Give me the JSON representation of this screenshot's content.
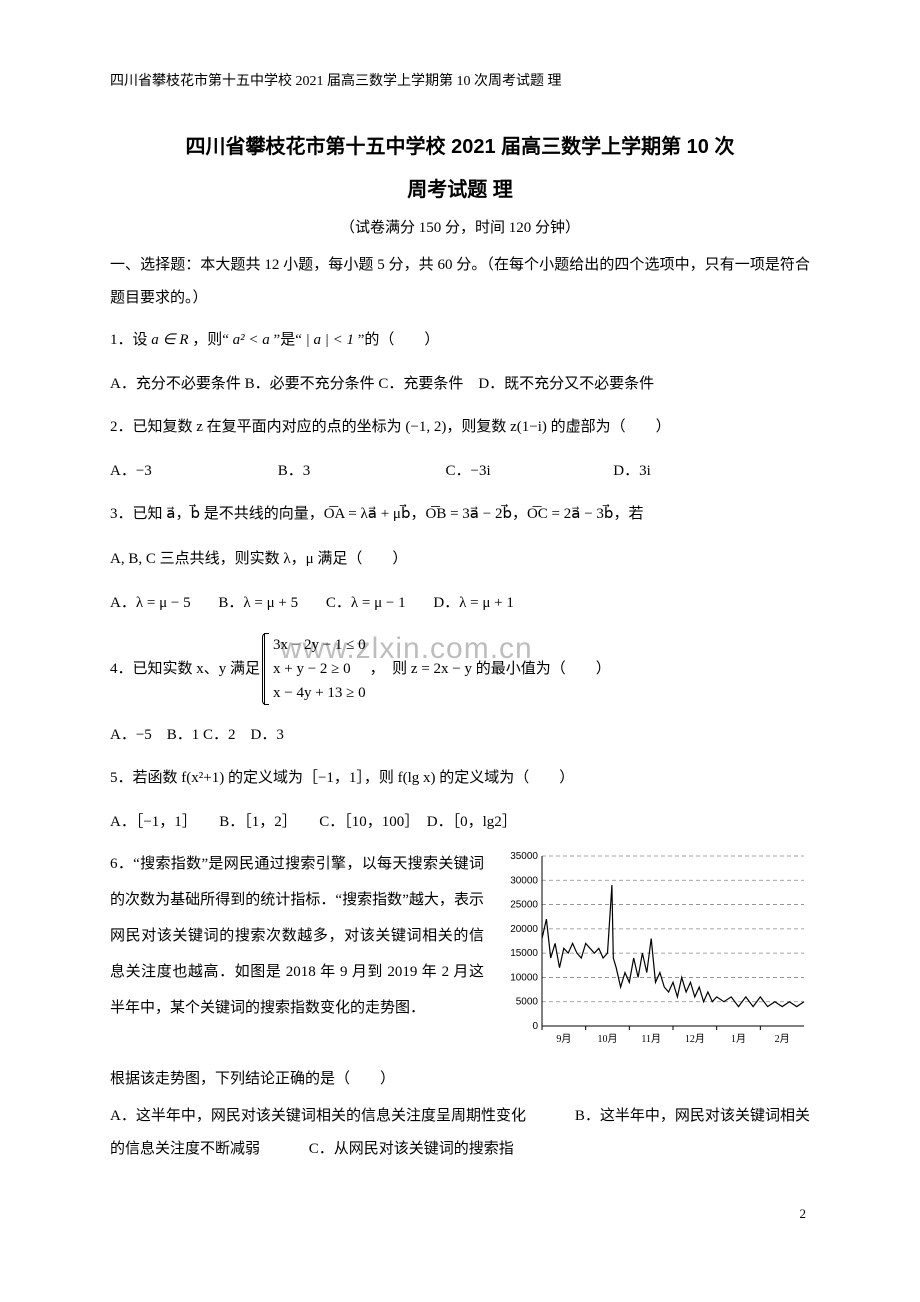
{
  "header": "四川省攀枝花市第十五中学校 2021 届高三数学上学期第 10 次周考试题 理",
  "title_line1": "四川省攀枝花市第十五中学校 2021 届高三数学上学期第 10 次",
  "title_line2": "周考试题 理",
  "subinfo": "（试卷满分 150 分，时间 120 分钟）",
  "section1": "一、选择题：本大题共 12 小题，每小题 5 分，共 60 分。（在每个小题给出的四个选项中，只有一项是符合题目要求的。）",
  "q1": {
    "stem_prefix": "1．设",
    "stem_mid": "，则“",
    "stem_mid2": "”是“",
    "stem_end": "”的（　　）",
    "a_in_R": "a ∈ R",
    "cond1": "a² < a",
    "cond2": "| a | < 1"
  },
  "q1_opts": "A．充分不必要条件 B．必要不充分条件 C．充要条件　D．既不充分又不必要条件",
  "q2": {
    "stem": "2．已知复数 z 在复平面内对应的点的坐标为 (−1, 2)，则复数 z(1−i) 的虚部为（　　）",
    "A": "A．−3",
    "B": "B．3",
    "C": "C．−3i",
    "D": "D．3i"
  },
  "q3": {
    "stem": "3．已知 a⃗，b⃗ 是不共线的向量，O͞A = λa⃗ + μb⃗，O͞B = 3a⃗ − 2b⃗，O͞C = 2a⃗ − 3b⃗，若",
    "stem2": "A, B, C 三点共线，则实数 λ，μ 满足（　　）",
    "A": "A．λ = μ − 5",
    "B": "B．λ = μ + 5",
    "C": "C．λ = μ − 1",
    "D": "D．λ = μ + 1"
  },
  "q4": {
    "stem_pre": "4．已知实数 x、y 满足",
    "sys1": "3x − 2y − 1 ≤ 0",
    "sys2": "x + y − 2 ≥ 0",
    "sys3": "x − 4y + 13 ≥ 0",
    "stem_post": "，　则 z = 2x − y 的最小值为（　　）",
    "opts": "A．−5　B．1 C．2　D．3"
  },
  "q5": {
    "stem": "5．若函数 f(x²+1) 的定义域为［−1，1］，则 f(lg x) 的定义域为（　　）",
    "opts": "A．［−1，1］　　B．［1，2］　　C．［10，100］　D．［0，lg2］"
  },
  "q6": {
    "p1": "6．“搜索指数”是网民通过搜索引擎，以每天搜索关键词的次数为基础所得到的统计指标．“搜索指数”越大，表示网民对该关键词的搜索次数越多，对该关键词相关的信息关注度也越高．如图是 2018 年 9 月到 2019 年 2 月这半年中，某个关键词的搜索指数变化的走势图．",
    "p2": "根据该走势图，下列结论正确的是（　　）",
    "A": "A．这半年中，网民对该关键词相关的信息关注度呈周期性变化",
    "B": "B．这半年中，网民对该关键词相关的信息关注度不断减弱",
    "C": "C．从网民对该关键词的搜索指"
  },
  "chart": {
    "type": "line",
    "y_ticks": [
      0,
      5000,
      10000,
      15000,
      20000,
      25000,
      30000,
      35000
    ],
    "x_labels": [
      "9月",
      "10月",
      "11月",
      "12月",
      "1月",
      "2月"
    ],
    "line_color": "#000000",
    "grid_color": "#888888",
    "axis_color": "#000000",
    "bg": "#ffffff",
    "font_size": 10,
    "points": [
      [
        0,
        18000
      ],
      [
        3,
        22000
      ],
      [
        6,
        14000
      ],
      [
        9,
        17000
      ],
      [
        12,
        12000
      ],
      [
        15,
        16000
      ],
      [
        18,
        15000
      ],
      [
        21,
        17000
      ],
      [
        24,
        15000
      ],
      [
        27,
        14000
      ],
      [
        30,
        17000
      ],
      [
        33,
        16000
      ],
      [
        36,
        15000
      ],
      [
        39,
        16000
      ],
      [
        42,
        14000
      ],
      [
        45,
        15000
      ],
      [
        48,
        29000
      ],
      [
        49,
        14000
      ],
      [
        51,
        12000
      ],
      [
        54,
        8000
      ],
      [
        57,
        11000
      ],
      [
        60,
        9000
      ],
      [
        63,
        14000
      ],
      [
        66,
        10000
      ],
      [
        69,
        15000
      ],
      [
        72,
        11000
      ],
      [
        75,
        18000
      ],
      [
        78,
        9000
      ],
      [
        81,
        11000
      ],
      [
        84,
        8000
      ],
      [
        87,
        7000
      ],
      [
        90,
        9000
      ],
      [
        93,
        6000
      ],
      [
        96,
        10000
      ],
      [
        99,
        7000
      ],
      [
        102,
        9000
      ],
      [
        105,
        6000
      ],
      [
        108,
        8000
      ],
      [
        111,
        5000
      ],
      [
        114,
        7000
      ],
      [
        117,
        5000
      ],
      [
        120,
        6000
      ],
      [
        125,
        5000
      ],
      [
        130,
        6000
      ],
      [
        135,
        4000
      ],
      [
        140,
        6000
      ],
      [
        145,
        4000
      ],
      [
        150,
        6000
      ],
      [
        155,
        4000
      ],
      [
        160,
        5000
      ],
      [
        165,
        4000
      ],
      [
        170,
        5000
      ],
      [
        175,
        4000
      ],
      [
        180,
        5000
      ]
    ]
  },
  "watermark": "www.zlxin.com.cn",
  "page_number": "2"
}
